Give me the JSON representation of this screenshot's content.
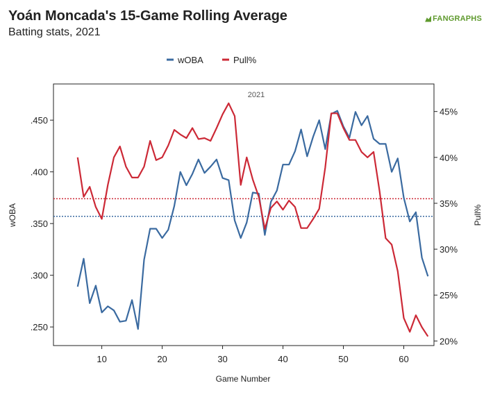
{
  "title": "Yoán Moncada's 15-Game Rolling Average",
  "subtitle": "Batting stats, 2021",
  "brand": "FANGRAPHS",
  "chart_data": {
    "type": "line",
    "panel_label": "2021",
    "xlabel": "Game Number",
    "ylabel_left": "wOBA",
    "ylabel_right": "Pull%",
    "xlim": [
      2,
      65
    ],
    "x_ticks": [
      10,
      20,
      30,
      40,
      50,
      60
    ],
    "ylim_left": [
      0.232,
      0.485
    ],
    "y_ticks_left": [
      0.25,
      0.3,
      0.35,
      0.4,
      0.45
    ],
    "y_tick_labels_left": [
      ".250",
      ".300",
      ".350",
      ".400",
      ".450"
    ],
    "ylim_right": [
      0.195,
      0.48
    ],
    "y_ticks_right": [
      0.2,
      0.25,
      0.3,
      0.35,
      0.4,
      0.45
    ],
    "y_tick_labels_right": [
      "20%",
      "25%",
      "30%",
      "35%",
      "40%",
      "45%"
    ],
    "legend_position": "top-center",
    "x": [
      6,
      7,
      8,
      9,
      10,
      11,
      12,
      13,
      14,
      15,
      16,
      17,
      18,
      19,
      20,
      21,
      22,
      23,
      24,
      25,
      26,
      27,
      28,
      29,
      30,
      31,
      32,
      33,
      34,
      35,
      36,
      37,
      38,
      39,
      40,
      41,
      42,
      43,
      44,
      45,
      46,
      47,
      48,
      49,
      50,
      51,
      52,
      53,
      54,
      55,
      56,
      57,
      58,
      59,
      60,
      61,
      62,
      63,
      64
    ],
    "series": [
      {
        "name": "wOBA",
        "axis": "left",
        "color": "#3a6aa0",
        "average": 0.357,
        "values": [
          0.289,
          0.316,
          0.273,
          0.29,
          0.264,
          0.27,
          0.266,
          0.255,
          0.256,
          0.276,
          0.248,
          0.315,
          0.345,
          0.345,
          0.336,
          0.344,
          0.367,
          0.4,
          0.387,
          0.398,
          0.412,
          0.399,
          0.405,
          0.412,
          0.394,
          0.392,
          0.353,
          0.336,
          0.351,
          0.38,
          0.379,
          0.339,
          0.371,
          0.382,
          0.407,
          0.407,
          0.42,
          0.441,
          0.415,
          0.434,
          0.45,
          0.422,
          0.456,
          0.459,
          0.444,
          0.433,
          0.458,
          0.445,
          0.454,
          0.432,
          0.427,
          0.427,
          0.4,
          0.413,
          0.375,
          0.352,
          0.361,
          0.317,
          0.299
        ]
      },
      {
        "name": "Pull%",
        "axis": "right",
        "color": "#cc2936",
        "average": 0.355,
        "values": [
          0.4,
          0.357,
          0.368,
          0.346,
          0.333,
          0.37,
          0.4,
          0.412,
          0.39,
          0.378,
          0.378,
          0.39,
          0.418,
          0.397,
          0.4,
          0.413,
          0.43,
          0.425,
          0.421,
          0.432,
          0.42,
          0.421,
          0.418,
          0.432,
          0.447,
          0.459,
          0.445,
          0.37,
          0.4,
          0.376,
          0.357,
          0.322,
          0.345,
          0.352,
          0.343,
          0.353,
          0.346,
          0.323,
          0.323,
          0.333,
          0.344,
          0.389,
          0.448,
          0.448,
          0.432,
          0.419,
          0.419,
          0.406,
          0.4,
          0.406,
          0.363,
          0.312,
          0.305,
          0.276,
          0.225,
          0.21,
          0.228,
          0.215,
          0.205
        ]
      }
    ]
  }
}
